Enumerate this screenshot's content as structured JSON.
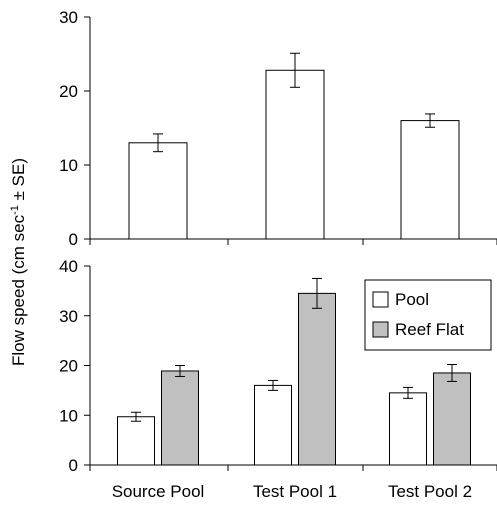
{
  "chart_data": [
    {
      "type": "bar",
      "categories": [
        "Source Pool",
        "Test Pool 1",
        "Test Pool 2"
      ],
      "series": [
        {
          "values": [
            13.0,
            22.8,
            16.0
          ],
          "errors": [
            1.2,
            2.3,
            0.9
          ]
        }
      ],
      "ylim": [
        0,
        30
      ],
      "yticks": [
        "0",
        "10",
        "20",
        "30"
      ],
      "bar_color": "#ffffff",
      "legend": null
    },
    {
      "type": "bar",
      "categories": [
        "Source Pool",
        "Test Pool 1",
        "Test Pool 2"
      ],
      "series": [
        {
          "name": "Pool",
          "values": [
            9.7,
            16.0,
            14.5
          ],
          "errors": [
            0.9,
            1.0,
            1.1
          ],
          "color": "#ffffff"
        },
        {
          "name": "Reef Flat",
          "values": [
            18.9,
            34.5,
            18.5
          ],
          "errors": [
            1.1,
            3.0,
            1.7
          ],
          "color": "#c0c0c0"
        }
      ],
      "ylim": [
        0,
        40
      ],
      "yticks": [
        "0",
        "10",
        "20",
        "30",
        "40"
      ],
      "legend": "top-right"
    }
  ],
  "xaxis_labels": [
    "Source Pool",
    "Test Pool 1",
    "Test Pool 2"
  ],
  "ylabel_text": "Flow speed (cm sec",
  "ylabel_sup": "-1",
  "ylabel_tail": " ± SE)"
}
